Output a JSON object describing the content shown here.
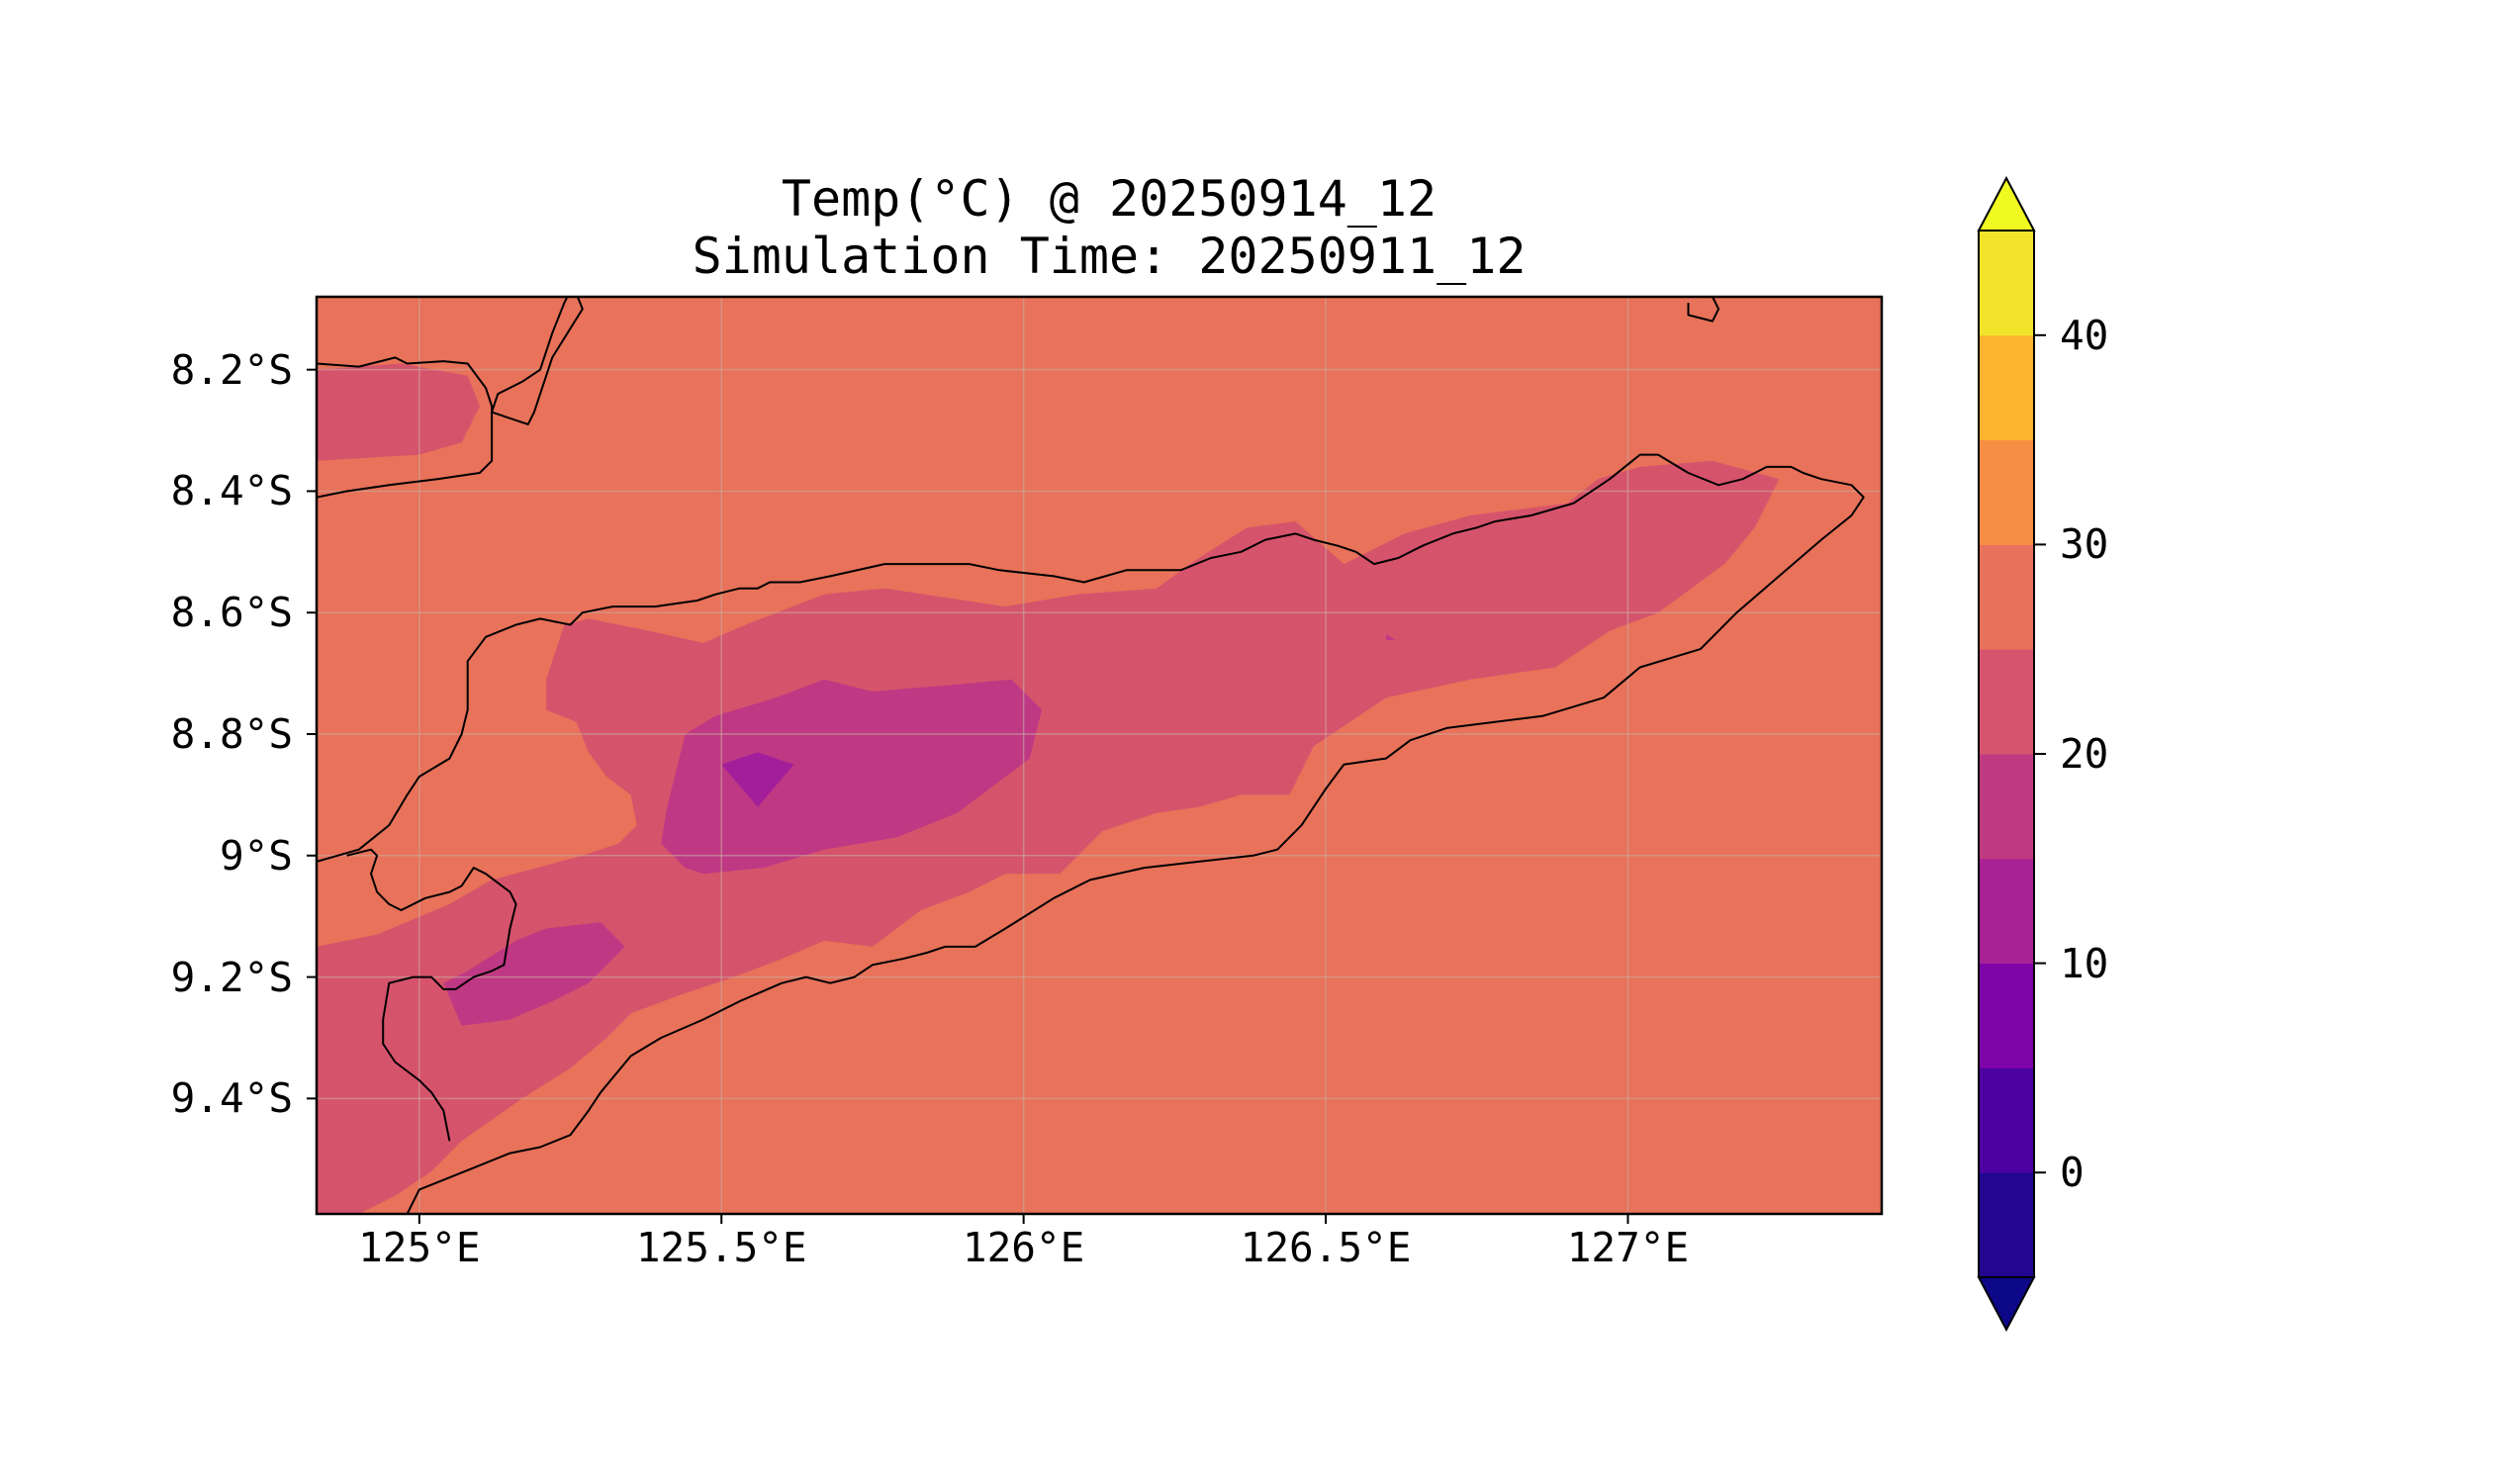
{
  "title": {
    "line1": "Temp(°C) @ 20250914_12",
    "line2": "Simulation Time: 20250911_12"
  },
  "map": {
    "region": {
      "lon_min": 124.83,
      "lon_max": 127.42,
      "lat_min": -9.59,
      "lat_max": -8.08
    },
    "y_ticks": [
      {
        "value": -8.2,
        "label": "8.2°S"
      },
      {
        "value": -8.4,
        "label": "8.4°S"
      },
      {
        "value": -8.6,
        "label": "8.6°S"
      },
      {
        "value": -8.8,
        "label": "8.8°S"
      },
      {
        "value": -9.0,
        "label": "9°S"
      },
      {
        "value": -9.2,
        "label": "9.2°S"
      },
      {
        "value": -9.4,
        "label": "9.4°S"
      }
    ],
    "x_ticks": [
      {
        "value": 125.0,
        "label": "125°E"
      },
      {
        "value": 125.5,
        "label": "125.5°E"
      },
      {
        "value": 126.0,
        "label": "126°E"
      },
      {
        "value": 126.5,
        "label": "126.5°E"
      },
      {
        "value": 127.0,
        "label": "127°E"
      }
    ],
    "gridlines": true,
    "background_level_range": [
      25,
      30
    ],
    "contours": [
      {
        "range": [
          20,
          25
        ],
        "color": "#d6536c",
        "points": [
          [
            124.83,
            -8.2
          ],
          [
            124.97,
            -8.19
          ],
          [
            125.08,
            -8.21
          ],
          [
            125.1,
            -8.26
          ],
          [
            125.07,
            -8.32
          ],
          [
            125.0,
            -8.34
          ],
          [
            124.83,
            -8.35
          ]
        ]
      },
      {
        "range": [
          20,
          25
        ],
        "color": "#d6536c",
        "points": [
          [
            125.21,
            -8.76
          ],
          [
            125.21,
            -8.71
          ],
          [
            125.24,
            -8.62
          ],
          [
            125.28,
            -8.61
          ],
          [
            125.38,
            -8.63
          ],
          [
            125.47,
            -8.65
          ],
          [
            125.54,
            -8.62
          ],
          [
            125.67,
            -8.57
          ],
          [
            125.77,
            -8.56
          ],
          [
            125.97,
            -8.59
          ],
          [
            126.09,
            -8.57
          ],
          [
            126.22,
            -8.56
          ],
          [
            126.29,
            -8.51
          ],
          [
            126.37,
            -8.46
          ],
          [
            126.45,
            -8.45
          ],
          [
            126.53,
            -8.52
          ],
          [
            126.63,
            -8.47
          ],
          [
            126.74,
            -8.44
          ],
          [
            126.9,
            -8.42
          ],
          [
            126.95,
            -8.38
          ],
          [
            127.02,
            -8.36
          ],
          [
            127.14,
            -8.35
          ],
          [
            127.25,
            -8.38
          ],
          [
            127.21,
            -8.46
          ],
          [
            127.16,
            -8.52
          ],
          [
            127.05,
            -8.6
          ],
          [
            126.97,
            -8.63
          ],
          [
            126.88,
            -8.69
          ],
          [
            126.74,
            -8.71
          ],
          [
            126.6,
            -8.74
          ],
          [
            126.48,
            -8.82
          ],
          [
            126.44,
            -8.9
          ],
          [
            126.36,
            -8.9
          ],
          [
            126.29,
            -8.92
          ],
          [
            126.22,
            -8.93
          ],
          [
            126.13,
            -8.96
          ],
          [
            126.06,
            -9.03
          ],
          [
            125.97,
            -9.03
          ],
          [
            125.91,
            -9.06
          ],
          [
            125.83,
            -9.09
          ],
          [
            125.75,
            -9.15
          ],
          [
            125.67,
            -9.14
          ],
          [
            125.6,
            -9.17
          ],
          [
            125.52,
            -9.2
          ],
          [
            125.43,
            -9.23
          ],
          [
            125.35,
            -9.26
          ],
          [
            125.31,
            -9.3
          ],
          [
            125.25,
            -9.35
          ],
          [
            125.17,
            -9.4
          ],
          [
            125.07,
            -9.47
          ],
          [
            125.02,
            -9.52
          ],
          [
            124.96,
            -9.56
          ],
          [
            124.9,
            -9.59
          ],
          [
            124.83,
            -9.59
          ],
          [
            124.83,
            -9.15
          ],
          [
            124.93,
            -9.13
          ],
          [
            125.05,
            -9.08
          ],
          [
            125.12,
            -9.04
          ],
          [
            125.27,
            -9.0
          ],
          [
            125.33,
            -8.98
          ],
          [
            125.36,
            -8.95
          ],
          [
            125.35,
            -8.9
          ],
          [
            125.31,
            -8.87
          ],
          [
            125.28,
            -8.83
          ],
          [
            125.26,
            -8.78
          ]
        ]
      },
      {
        "range": [
          15,
          20
        ],
        "color": "#bf3884",
        "points": [
          [
            125.4,
            -8.98
          ],
          [
            125.41,
            -8.92
          ],
          [
            125.44,
            -8.8
          ],
          [
            125.49,
            -8.77
          ],
          [
            125.59,
            -8.74
          ],
          [
            125.67,
            -8.71
          ],
          [
            125.75,
            -8.73
          ],
          [
            125.87,
            -8.72
          ],
          [
            125.98,
            -8.71
          ],
          [
            126.03,
            -8.76
          ],
          [
            126.01,
            -8.84
          ],
          [
            125.89,
            -8.93
          ],
          [
            125.79,
            -8.97
          ],
          [
            125.67,
            -8.99
          ],
          [
            125.57,
            -9.02
          ],
          [
            125.47,
            -9.03
          ],
          [
            125.44,
            -9.02
          ]
        ]
      },
      {
        "range": [
          15,
          20
        ],
        "color": "#bf3884",
        "points": [
          [
            125.08,
            -9.19
          ],
          [
            125.16,
            -9.14
          ],
          [
            125.21,
            -9.12
          ],
          [
            125.3,
            -9.11
          ],
          [
            125.34,
            -9.15
          ],
          [
            125.28,
            -9.21
          ],
          [
            125.22,
            -9.24
          ],
          [
            125.15,
            -9.27
          ],
          [
            125.07,
            -9.28
          ],
          [
            125.04,
            -9.21
          ]
        ]
      },
      {
        "range": [
          10,
          15
        ],
        "color": "#a31e9a",
        "points": [
          [
            125.5,
            -8.85
          ],
          [
            125.56,
            -8.83
          ],
          [
            125.62,
            -8.85
          ],
          [
            125.56,
            -8.92
          ]
        ]
      },
      {
        "range": [
          15,
          20
        ],
        "color": "#bf3884",
        "points": [
          [
            126.6,
            -8.635
          ],
          [
            126.615,
            -8.645
          ],
          [
            126.6,
            -8.645
          ]
        ]
      }
    ],
    "coastlines": [
      [
        [
          125.2,
          -8.04
        ],
        [
          125.26,
          -8.05
        ],
        [
          125.24,
          -8.09
        ],
        [
          125.22,
          -8.14
        ],
        [
          125.2,
          -8.2
        ],
        [
          125.17,
          -8.22
        ],
        [
          125.13,
          -8.24
        ],
        [
          125.12,
          -8.27
        ],
        [
          125.15,
          -8.28
        ],
        [
          125.18,
          -8.29
        ],
        [
          125.19,
          -8.27
        ],
        [
          125.22,
          -8.18
        ],
        [
          125.27,
          -8.1
        ],
        [
          125.25,
          -8.05
        ]
      ],
      [
        [
          124.83,
          -8.19
        ],
        [
          124.9,
          -8.195
        ],
        [
          124.94,
          -8.185
        ],
        [
          124.96,
          -8.18
        ],
        [
          124.98,
          -8.19
        ],
        [
          125.04,
          -8.186
        ],
        [
          125.08,
          -8.19
        ],
        [
          125.11,
          -8.23
        ],
        [
          125.12,
          -8.26
        ],
        [
          125.12,
          -8.35
        ],
        [
          125.1,
          -8.37
        ],
        [
          125.03,
          -8.38
        ],
        [
          124.95,
          -8.39
        ],
        [
          124.88,
          -8.4
        ],
        [
          124.83,
          -8.41
        ]
      ],
      [
        [
          127.14,
          -8.08
        ],
        [
          127.15,
          -8.1
        ],
        [
          127.14,
          -8.12
        ],
        [
          127.1,
          -8.11
        ],
        [
          127.1,
          -8.09
        ]
      ],
      [
        [
          124.83,
          -9.01
        ],
        [
          124.9,
          -8.99
        ],
        [
          124.95,
          -8.95
        ],
        [
          124.98,
          -8.9
        ],
        [
          125.0,
          -8.87
        ],
        [
          125.05,
          -8.84
        ],
        [
          125.07,
          -8.8
        ],
        [
          125.08,
          -8.76
        ],
        [
          125.08,
          -8.68
        ],
        [
          125.11,
          -8.64
        ],
        [
          125.16,
          -8.62
        ],
        [
          125.2,
          -8.61
        ],
        [
          125.25,
          -8.62
        ],
        [
          125.27,
          -8.6
        ],
        [
          125.32,
          -8.59
        ],
        [
          125.39,
          -8.59
        ],
        [
          125.46,
          -8.58
        ],
        [
          125.49,
          -8.57
        ],
        [
          125.53,
          -8.56
        ],
        [
          125.56,
          -8.56
        ],
        [
          125.58,
          -8.55
        ],
        [
          125.63,
          -8.55
        ],
        [
          125.68,
          -8.54
        ],
        [
          125.77,
          -8.52
        ],
        [
          125.83,
          -8.52
        ],
        [
          125.91,
          -8.52
        ],
        [
          125.96,
          -8.53
        ],
        [
          126.05,
          -8.54
        ],
        [
          126.1,
          -8.55
        ],
        [
          126.17,
          -8.53
        ],
        [
          126.26,
          -8.53
        ],
        [
          126.31,
          -8.51
        ],
        [
          126.36,
          -8.5
        ],
        [
          126.4,
          -8.48
        ],
        [
          126.45,
          -8.47
        ],
        [
          126.48,
          -8.48
        ],
        [
          126.52,
          -8.49
        ],
        [
          126.55,
          -8.5
        ],
        [
          126.58,
          -8.52
        ],
        [
          126.62,
          -8.51
        ],
        [
          126.66,
          -8.49
        ],
        [
          126.71,
          -8.47
        ],
        [
          126.75,
          -8.46
        ],
        [
          126.78,
          -8.45
        ],
        [
          126.84,
          -8.44
        ],
        [
          126.91,
          -8.42
        ],
        [
          126.97,
          -8.38
        ],
        [
          127.02,
          -8.34
        ],
        [
          127.05,
          -8.34
        ],
        [
          127.1,
          -8.37
        ],
        [
          127.15,
          -8.39
        ],
        [
          127.19,
          -8.38
        ],
        [
          127.23,
          -8.36
        ],
        [
          127.27,
          -8.36
        ],
        [
          127.29,
          -8.37
        ],
        [
          127.32,
          -8.38
        ],
        [
          127.37,
          -8.39
        ],
        [
          127.39,
          -8.41
        ],
        [
          127.37,
          -8.44
        ],
        [
          127.32,
          -8.48
        ],
        [
          127.25,
          -8.54
        ],
        [
          127.18,
          -8.6
        ],
        [
          127.12,
          -8.66
        ],
        [
          127.02,
          -8.69
        ],
        [
          126.96,
          -8.74
        ],
        [
          126.86,
          -8.77
        ],
        [
          126.7,
          -8.79
        ],
        [
          126.64,
          -8.81
        ],
        [
          126.6,
          -8.84
        ],
        [
          126.53,
          -8.85
        ],
        [
          126.5,
          -8.89
        ],
        [
          126.46,
          -8.95
        ],
        [
          126.42,
          -8.99
        ],
        [
          126.38,
          -9.0
        ],
        [
          126.29,
          -9.01
        ],
        [
          126.2,
          -9.02
        ],
        [
          126.11,
          -9.04
        ],
        [
          126.05,
          -9.07
        ],
        [
          125.97,
          -9.12
        ],
        [
          125.92,
          -9.15
        ],
        [
          125.87,
          -9.15
        ],
        [
          125.84,
          -9.16
        ],
        [
          125.8,
          -9.17
        ],
        [
          125.75,
          -9.18
        ],
        [
          125.72,
          -9.2
        ],
        [
          125.68,
          -9.21
        ],
        [
          125.64,
          -9.2
        ],
        [
          125.6,
          -9.21
        ],
        [
          125.53,
          -9.24
        ],
        [
          125.47,
          -9.27
        ],
        [
          125.4,
          -9.3
        ],
        [
          125.35,
          -9.33
        ],
        [
          125.3,
          -9.39
        ],
        [
          125.28,
          -9.42
        ],
        [
          125.25,
          -9.46
        ],
        [
          125.2,
          -9.48
        ],
        [
          125.15,
          -9.49
        ],
        [
          125.1,
          -9.51
        ],
        [
          125.05,
          -9.53
        ],
        [
          125.0,
          -9.55
        ],
        [
          124.99,
          -9.57
        ],
        [
          124.98,
          -9.59
        ]
      ],
      [
        [
          125.05,
          -9.47
        ],
        [
          125.04,
          -9.42
        ],
        [
          125.02,
          -9.39
        ],
        [
          125.0,
          -9.37
        ],
        [
          124.96,
          -9.34
        ],
        [
          124.94,
          -9.31
        ],
        [
          124.94,
          -9.27
        ],
        [
          124.95,
          -9.21
        ],
        [
          124.99,
          -9.2
        ],
        [
          125.02,
          -9.2
        ],
        [
          125.04,
          -9.22
        ],
        [
          125.06,
          -9.22
        ],
        [
          125.09,
          -9.2
        ],
        [
          125.12,
          -9.19
        ],
        [
          125.14,
          -9.18
        ],
        [
          125.15,
          -9.12
        ],
        [
          125.16,
          -9.08
        ],
        [
          125.15,
          -9.06
        ],
        [
          125.11,
          -9.03
        ],
        [
          125.09,
          -9.02
        ],
        [
          125.07,
          -9.05
        ],
        [
          125.05,
          -9.06
        ],
        [
          125.01,
          -9.07
        ],
        [
          124.97,
          -9.09
        ],
        [
          124.95,
          -9.08
        ],
        [
          124.93,
          -9.06
        ],
        [
          124.92,
          -9.03
        ],
        [
          124.93,
          -9.0
        ],
        [
          124.92,
          -8.99
        ],
        [
          124.88,
          -9.0
        ]
      ]
    ]
  },
  "colorbar": {
    "levels": [
      -5,
      0,
      5,
      10,
      15,
      20,
      25,
      30,
      35,
      40,
      45
    ],
    "colors": [
      "#220690",
      "#4c02a1",
      "#7e03a8",
      "#a82296",
      "#c03a83",
      "#d6546e",
      "#e8715c",
      "#f68f44",
      "#fdb32f",
      "#f1e42b"
    ],
    "under_color": "#0d0887",
    "over_color": "#f0f921",
    "ticks": [
      {
        "value": 0,
        "label": "0"
      },
      {
        "value": 10,
        "label": "10"
      },
      {
        "value": 20,
        "label": "20"
      },
      {
        "value": 30,
        "label": "30"
      },
      {
        "value": 40,
        "label": "40"
      }
    ]
  },
  "colors": {
    "background_fill": "#e8725a",
    "coastline": "#000000",
    "grid": "#c9a89c"
  }
}
